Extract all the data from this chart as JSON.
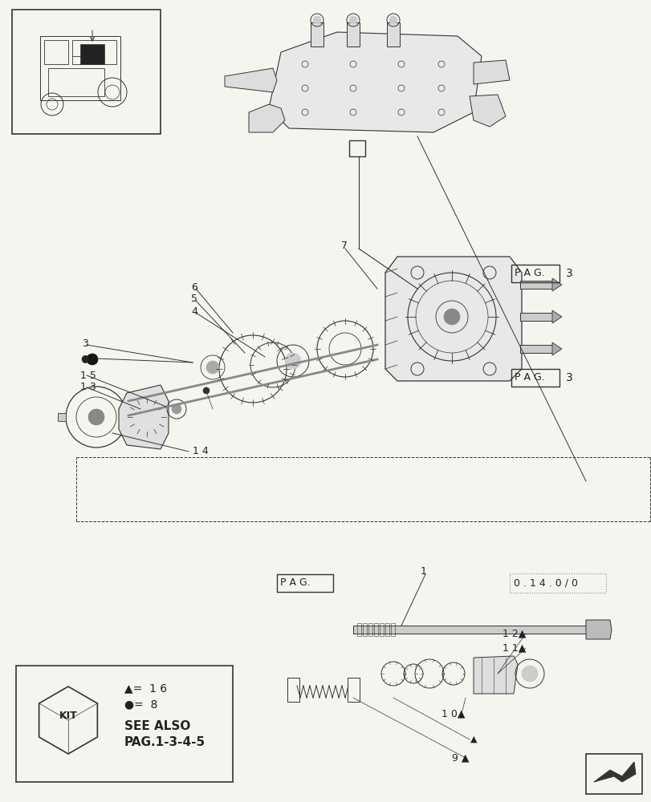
{
  "bg_color": "#f5f5f0",
  "line_color": "#333333",
  "page_ref_box1": "P A G.",
  "page_ref_num1": "3",
  "page_ref_box2": "P A G.",
  "page_ref_num2": "3",
  "page_ref_box3": "P A G.",
  "part_number_box": "0 . 1 4 . 0 / 0"
}
